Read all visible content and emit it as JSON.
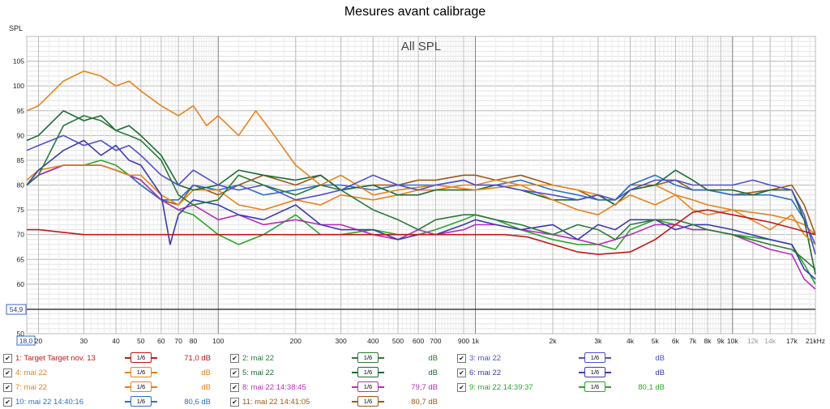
{
  "title": "Mesures avant calibrage",
  "chart_data": {
    "type": "line",
    "title": "Mesures avant calibrage",
    "plot_label": "All SPL",
    "ylabel": "SPL",
    "xscale": "log",
    "xlim": [
      18,
      21000
    ],
    "ylim": [
      50,
      110
    ],
    "ytick_labels": [
      "50",
      "55",
      "60",
      "65",
      "70",
      "75",
      "80",
      "85",
      "90",
      "95",
      "100",
      "105"
    ],
    "xtick_labels": [
      {
        "label": "18,0",
        "f": 18,
        "boxed": true
      },
      {
        "label": "20",
        "f": 20
      },
      {
        "label": "30",
        "f": 30
      },
      {
        "label": "40",
        "f": 40
      },
      {
        "label": "50",
        "f": 50
      },
      {
        "label": "60",
        "f": 60
      },
      {
        "label": "70",
        "f": 70
      },
      {
        "label": "80",
        "f": 80
      },
      {
        "label": "100",
        "f": 100
      },
      {
        "label": "200",
        "f": 200
      },
      {
        "label": "300",
        "f": 300
      },
      {
        "label": "400",
        "f": 400
      },
      {
        "label": "500",
        "f": 500
      },
      {
        "label": "600",
        "f": 600
      },
      {
        "label": "700",
        "f": 700
      },
      {
        "label": "900",
        "f": 900
      },
      {
        "label": "1k",
        "f": 1000
      },
      {
        "label": "2k",
        "f": 2000
      },
      {
        "label": "3k",
        "f": 3000
      },
      {
        "label": "4k",
        "f": 4000
      },
      {
        "label": "5k",
        "f": 5000
      },
      {
        "label": "6k",
        "f": 6000
      },
      {
        "label": "7k",
        "f": 7000
      },
      {
        "label": "8k",
        "f": 8000
      },
      {
        "label": "9k",
        "f": 9000
      },
      {
        "label": "10k",
        "f": 10000
      },
      {
        "label": "12k",
        "f": 12000,
        "light": true
      },
      {
        "label": "14k",
        "f": 14000,
        "light": true
      },
      {
        "label": "17k",
        "f": 17000
      },
      {
        "label": "21kHz",
        "f": 21000
      }
    ],
    "reference_line": {
      "label": "54,9",
      "y": 54.9
    },
    "series": [
      {
        "name": "1: Target Target nov. 13",
        "color": "#c01818",
        "smoothing": "1/6",
        "value": "71,0 dB",
        "x": [
          18,
          20,
          30,
          40,
          60,
          100,
          200,
          400,
          700,
          1000,
          1300,
          1600,
          2000,
          2500,
          3000,
          4000,
          5000,
          6000,
          7000,
          8000,
          10000,
          14000,
          18000,
          21000
        ],
        "y": [
          71,
          71,
          70,
          70,
          70,
          70,
          70,
          70,
          70,
          70,
          70,
          69.5,
          68,
          66.5,
          66,
          66.5,
          69,
          72,
          74.5,
          75,
          74,
          72.5,
          71,
          70
        ]
      },
      {
        "name": "2: mai 22",
        "color": "#2a7a3a",
        "smoothing": "1/6",
        "value": "dB",
        "x": [
          18,
          20,
          25,
          30,
          35,
          40,
          45,
          50,
          60,
          70,
          80,
          100,
          120,
          150,
          200,
          250,
          300,
          400,
          500,
          600,
          700,
          900,
          1000,
          1200,
          1500,
          2000,
          2500,
          3000,
          3500,
          4000,
          5000,
          6000,
          7000,
          8000,
          10000,
          14000,
          17000,
          19000,
          21000
        ],
        "y": [
          80,
          82,
          92,
          94,
          93,
          91,
          90,
          89,
          85,
          78,
          76,
          77,
          82,
          80,
          78,
          80,
          79,
          75,
          73,
          71,
          73,
          74,
          74,
          73,
          72,
          70,
          72,
          71,
          69,
          72,
          73,
          73,
          72,
          71,
          70,
          68,
          67,
          65,
          63
        ]
      },
      {
        "name": "3: mai 22",
        "color": "#4f4fd0",
        "smoothing": "1/6",
        "value": "dB",
        "x": [
          18,
          20,
          25,
          30,
          35,
          40,
          45,
          50,
          60,
          70,
          80,
          100,
          120,
          150,
          200,
          250,
          300,
          400,
          500,
          600,
          700,
          900,
          1000,
          1200,
          1500,
          2000,
          2500,
          3000,
          3500,
          4000,
          5000,
          6000,
          7000,
          8000,
          10000,
          12000,
          14000,
          17000,
          19000,
          21000
        ],
        "y": [
          87,
          88,
          90,
          88,
          89,
          87,
          88,
          86,
          82,
          80,
          83,
          80,
          79,
          80,
          77,
          78,
          79,
          82,
          80,
          79,
          80,
          81,
          80,
          80,
          79,
          78,
          77,
          78,
          77,
          79,
          81,
          81,
          80,
          80,
          80,
          81,
          80,
          79,
          74,
          66
        ]
      },
      {
        "name": "4: mai 22",
        "color": "#e8821c",
        "smoothing": "1/6",
        "value": "dB",
        "x": [
          18,
          20,
          25,
          30,
          35,
          40,
          45,
          50,
          60,
          70,
          80,
          90,
          100,
          120,
          140,
          160,
          200,
          250,
          300,
          400,
          500,
          700,
          1000,
          1500,
          2000,
          2500,
          3000,
          4000,
          5000,
          6000,
          7000,
          8000,
          10000,
          14000,
          17000,
          19000,
          21000
        ],
        "y": [
          95,
          96,
          101,
          103,
          102,
          100,
          101,
          99,
          96,
          94,
          96,
          92,
          94,
          90,
          95,
          91,
          84,
          80,
          82,
          78,
          79,
          80,
          79,
          80,
          77,
          75,
          74,
          78,
          76,
          78,
          75,
          74,
          75,
          71,
          74,
          70,
          68
        ]
      },
      {
        "name": "5: mai 22",
        "color": "#1c6a34",
        "smoothing": "1/6",
        "value": "dB",
        "x": [
          18,
          20,
          25,
          30,
          35,
          40,
          45,
          50,
          60,
          70,
          80,
          100,
          120,
          150,
          200,
          250,
          300,
          400,
          500,
          600,
          700,
          900,
          1000,
          1200,
          1500,
          2000,
          2500,
          3000,
          3500,
          4000,
          5000,
          6000,
          7000,
          8000,
          10000,
          12000,
          14000,
          17000,
          19000,
          21000
        ],
        "y": [
          89,
          90,
          95,
          93,
          94,
          91,
          92,
          90,
          86,
          80,
          79,
          80,
          83,
          82,
          81,
          82,
          79,
          80,
          78,
          78,
          79,
          79,
          79,
          80,
          79,
          77,
          77,
          78,
          76,
          79,
          80,
          83,
          81,
          79,
          79,
          78,
          79,
          79,
          73,
          62
        ]
      },
      {
        "name": "6: mai 22",
        "color": "#3a3ab0",
        "smoothing": "1/6",
        "value": "dB",
        "x": [
          18,
          20,
          25,
          30,
          35,
          40,
          45,
          50,
          60,
          65,
          70,
          80,
          100,
          120,
          150,
          200,
          250,
          300,
          400,
          500,
          600,
          700,
          900,
          1000,
          1200,
          1500,
          2000,
          2500,
          3000,
          3500,
          4000,
          5000,
          6000,
          7000,
          8000,
          10000,
          14000,
          17000,
          19000,
          21000
        ],
        "y": [
          80,
          83,
          87,
          89,
          86,
          88,
          85,
          84,
          78,
          68,
          74,
          77,
          76,
          74,
          73,
          76,
          72,
          71,
          71,
          69,
          70,
          70,
          72,
          73,
          72,
          71,
          72,
          69,
          72,
          71,
          73,
          73,
          71,
          72,
          72,
          71,
          69,
          68,
          63,
          61
        ]
      },
      {
        "name": "7: mai 22",
        "color": "#e8821c",
        "smoothing": "1/6",
        "value": "dB",
        "x": [
          18,
          20,
          25,
          30,
          35,
          40,
          45,
          50,
          60,
          70,
          80,
          100,
          120,
          150,
          200,
          250,
          300,
          400,
          500,
          600,
          700,
          900,
          1000,
          1200,
          1500,
          2000,
          2500,
          3000,
          3500,
          4000,
          5000,
          6000,
          7000,
          8000,
          10000,
          14000,
          17000,
          19000,
          21000
        ],
        "y": [
          81,
          83,
          84,
          84,
          84,
          83,
          82,
          82,
          78,
          76,
          79,
          79,
          76,
          75,
          77,
          76,
          78,
          77,
          78,
          79,
          79,
          80,
          80,
          81,
          80,
          80,
          79,
          78,
          76,
          79,
          80,
          78,
          77,
          76,
          75,
          74,
          73,
          72,
          70
        ]
      },
      {
        "name": "8: mai 22 14:38:45",
        "color": "#b82eb8",
        "smoothing": "1/6",
        "value": "79,7 dB",
        "x": [
          18,
          20,
          25,
          30,
          35,
          40,
          45,
          50,
          60,
          70,
          80,
          100,
          120,
          150,
          200,
          250,
          300,
          400,
          500,
          600,
          700,
          900,
          1000,
          1200,
          1500,
          2000,
          2500,
          3000,
          3500,
          4000,
          5000,
          6000,
          7000,
          8000,
          10000,
          14000,
          17000,
          19000,
          21000
        ],
        "y": [
          80,
          82,
          84,
          84,
          84,
          83,
          82,
          81,
          77,
          75,
          76,
          73,
          74,
          72,
          73,
          72,
          72,
          70,
          69,
          71,
          70,
          71,
          72,
          72,
          71,
          70,
          69,
          68,
          69,
          70,
          72,
          72,
          71,
          71,
          70,
          67,
          66,
          61,
          59
        ]
      },
      {
        "name": "9: mai 22 14:39:37",
        "color": "#2aa62a",
        "smoothing": "1/6",
        "value": "80,1 dB",
        "x": [
          18,
          20,
          25,
          30,
          35,
          40,
          45,
          50,
          60,
          70,
          80,
          100,
          120,
          150,
          200,
          250,
          300,
          400,
          500,
          600,
          700,
          900,
          1000,
          1200,
          1500,
          2000,
          2500,
          3000,
          3500,
          4000,
          5000,
          6000,
          7000,
          8000,
          10000,
          14000,
          17000,
          19000,
          21000
        ],
        "y": [
          80,
          82,
          84,
          84,
          85,
          84,
          82,
          81,
          77,
          75,
          74,
          70,
          68,
          70,
          74,
          70,
          70,
          71,
          70,
          70,
          71,
          73,
          74,
          73,
          71,
          69,
          68,
          68,
          67,
          71,
          73,
          72,
          71,
          71,
          70,
          69,
          68,
          64,
          60
        ]
      },
      {
        "name": "10: mai 22 14:40:16",
        "color": "#2a70c8",
        "smoothing": "1/6",
        "value": "80,6 dB",
        "x": [
          18,
          20,
          25,
          30,
          35,
          40,
          45,
          50,
          60,
          70,
          80,
          100,
          120,
          150,
          200,
          250,
          300,
          400,
          500,
          600,
          700,
          900,
          1000,
          1200,
          1500,
          2000,
          2500,
          3000,
          3500,
          4000,
          5000,
          6000,
          7000,
          8000,
          10000,
          14000,
          17000,
          19000,
          21000
        ],
        "y": [
          80,
          82,
          84,
          84,
          84,
          83,
          82,
          80,
          77,
          77,
          80,
          79,
          80,
          78,
          79,
          80,
          80,
          79,
          80,
          80,
          80,
          81,
          80,
          80,
          81,
          79,
          78,
          77,
          77,
          80,
          82,
          80,
          79,
          79,
          78,
          78,
          77,
          73,
          68
        ]
      },
      {
        "name": "11: mai 22 14:41:05",
        "color": "#9a5a18",
        "smoothing": "1/6",
        "value": "80,7 dB",
        "x": [
          18,
          20,
          25,
          30,
          35,
          40,
          45,
          50,
          60,
          70,
          80,
          100,
          120,
          150,
          200,
          250,
          300,
          400,
          500,
          600,
          700,
          900,
          1000,
          1200,
          1500,
          2000,
          2500,
          3000,
          3500,
          4000,
          5000,
          6000,
          7000,
          8000,
          10000,
          14000,
          17000,
          19000,
          21000
        ],
        "y": [
          80,
          82,
          84,
          84,
          84,
          83,
          82,
          80,
          77,
          76,
          80,
          78,
          80,
          82,
          80,
          82,
          79,
          80,
          80,
          81,
          81,
          82,
          82,
          81,
          82,
          80,
          79,
          77,
          77,
          80,
          80,
          81,
          79,
          79,
          78,
          79,
          80,
          76,
          70
        ]
      }
    ]
  }
}
